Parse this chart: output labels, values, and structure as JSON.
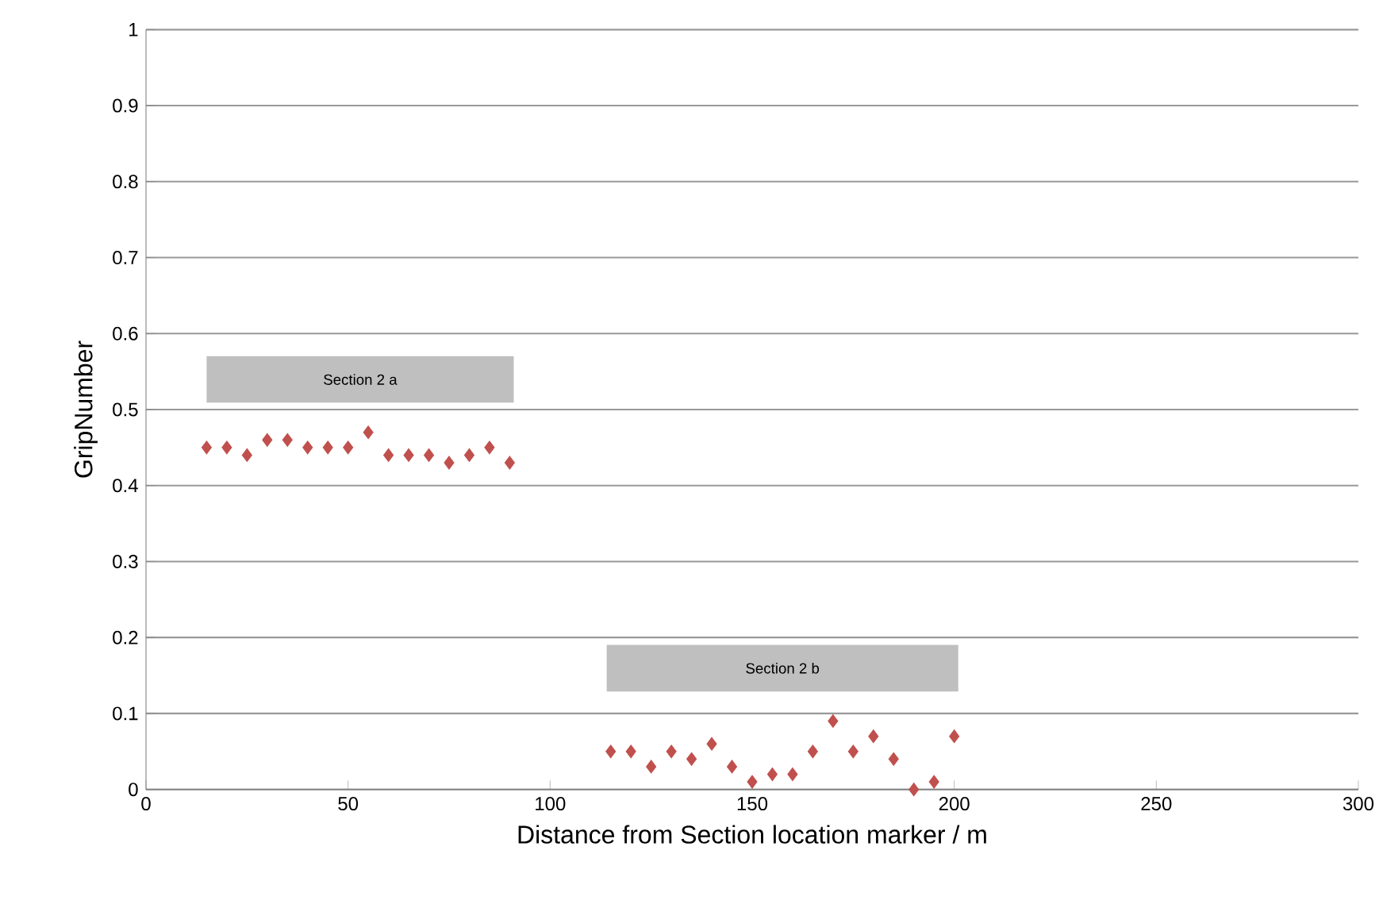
{
  "chart_data": {
    "type": "scatter",
    "xlabel": "Distance from Section location marker / m",
    "ylabel": "GripNumber",
    "x": [
      15,
      20,
      25,
      30,
      35,
      40,
      45,
      50,
      55,
      60,
      65,
      70,
      75,
      80,
      85,
      90,
      115,
      120,
      125,
      130,
      135,
      140,
      145,
      150,
      155,
      160,
      165,
      170,
      175,
      180,
      185,
      190,
      195,
      200
    ],
    "values": [
      0.45,
      0.45,
      0.44,
      0.46,
      0.46,
      0.45,
      0.45,
      0.45,
      0.47,
      0.44,
      0.44,
      0.44,
      0.43,
      0.44,
      0.45,
      0.43,
      0.05,
      0.05,
      0.03,
      0.05,
      0.04,
      0.06,
      0.03,
      0.01,
      0.02,
      0.02,
      0.05,
      0.09,
      0.05,
      0.07,
      0.04,
      0.0,
      0.01,
      0.07
    ],
    "color": "#c0504d",
    "marker": "diamond",
    "grid": "y",
    "xlim": [
      0,
      300
    ],
    "xticks": [
      0,
      50,
      100,
      150,
      200,
      250,
      300
    ],
    "ylim": [
      0,
      1
    ],
    "yticks": [
      0,
      0.1,
      0.2,
      0.3,
      0.4,
      0.5,
      0.6,
      0.7,
      0.8,
      0.9,
      1
    ],
    "bands": [
      {
        "axis": "x",
        "from": 15,
        "to": 91,
        "label": "Section 2 a",
        "color": "#bfbfbf"
      },
      {
        "axis": "x",
        "from": 114,
        "to": 201,
        "label": "Section 2 b",
        "color": "#bfbfbf"
      }
    ]
  }
}
